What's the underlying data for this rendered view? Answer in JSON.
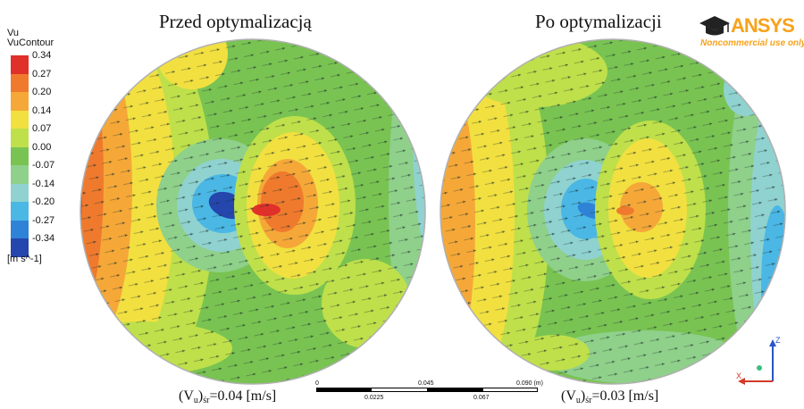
{
  "titles": {
    "left": "Przed optymalizacją",
    "right": "Po optymalizacji"
  },
  "captions": {
    "left": {
      "prefix": "(V",
      "sub_u": "u",
      "mid": ")",
      "sub_sr": "śr",
      "value": "=0.04 [m/s]"
    },
    "right": {
      "prefix": "(V",
      "sub_u": "u",
      "mid": ")",
      "sub_sr": "śr",
      "value": "=0.03 [m/s]"
    }
  },
  "legend": {
    "variable": "Vu",
    "name": "VuContour",
    "units": "[m s^-1]",
    "ticks": [
      "0.34",
      "0.27",
      "0.20",
      "0.14",
      "0.07",
      "0.00",
      "-0.07",
      "-0.14",
      "-0.20",
      "-0.27",
      "-0.34"
    ],
    "colors": [
      "#e0302a",
      "#ef7a2d",
      "#f5a838",
      "#f2e040",
      "#bfe04a",
      "#79c352",
      "#8fd08a",
      "#8fd2cf",
      "#4ab7e5",
      "#2f83d6",
      "#2546ad"
    ]
  },
  "logo": {
    "word": "ANSYS",
    "note": "Noncommercial use only"
  },
  "scale_bar": {
    "labels_top": [
      "0",
      "0.045",
      "0.090 (m)"
    ],
    "labels_bottom": [
      "0.0225",
      "0.067"
    ]
  },
  "axes": {
    "z": "Z",
    "x": "X"
  }
}
